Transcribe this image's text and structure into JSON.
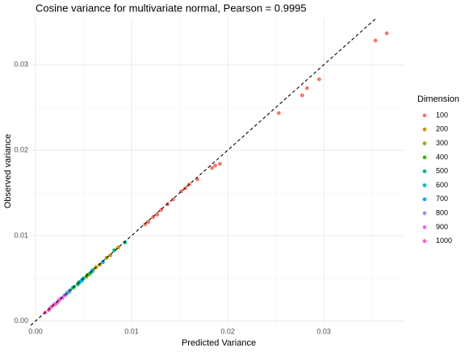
{
  "chart_data": {
    "type": "scatter",
    "title": "Cosine variance for multivariate normal, Pearson = 0.9995",
    "x_label": "Predicted Variance",
    "y_label": "Observed variance",
    "legend_title": "Dimension",
    "xlim": [
      -0.0005,
      0.0383
    ],
    "ylim": [
      -0.0005,
      0.0355
    ],
    "xticks": [
      {
        "value": 0,
        "label": "0.00"
      },
      {
        "value": 0.01,
        "label": "0.01"
      },
      {
        "value": 0.02,
        "label": "0.02"
      },
      {
        "value": 0.03,
        "label": "0.03"
      }
    ],
    "yticks": [
      {
        "value": 0,
        "label": "0.00"
      },
      {
        "value": 0.01,
        "label": "0.01"
      },
      {
        "value": 0.02,
        "label": "0.02"
      },
      {
        "value": 0.03,
        "label": "0.03"
      }
    ],
    "x_minor_grid": [
      0.005,
      0.015,
      0.025,
      0.035
    ],
    "y_minor_grid": [
      0.005,
      0.015,
      0.025
    ],
    "grid": true,
    "identity_line": true,
    "legend": "right",
    "series": [
      {
        "name": "100",
        "color": "#F8766D",
        "x": [
          0.03537,
          0.03655,
          0.02951,
          0.02825,
          0.02775,
          0.02531,
          0.0192,
          0.0187,
          0.01836,
          0.01685,
          0.016,
          0.0156,
          0.01517,
          0.01433,
          0.01375,
          0.01308,
          0.01266,
          0.01224,
          0.01174,
          0.0114
        ],
        "values": [
          0.03283,
          0.03368,
          0.0283,
          0.02726,
          0.02642,
          0.02434,
          0.0184,
          0.0182,
          0.01792,
          0.0166,
          0.016,
          0.01557,
          0.01519,
          0.01425,
          0.01368,
          0.01302,
          0.01245,
          0.01217,
          0.0116,
          0.01132
        ]
      },
      {
        "name": "200",
        "color": "#D89000",
        "x": [
          0.0056,
          0.0063,
          0.007,
          0.0078,
          0.0086
        ],
        "values": [
          0.0055,
          0.0063,
          0.0069,
          0.0077,
          0.0086
        ]
      },
      {
        "name": "300",
        "color": "#A3A500",
        "x": [
          0.0046,
          0.0053,
          0.006,
          0.0067,
          0.0074
        ],
        "values": [
          0.0046,
          0.0052,
          0.006,
          0.0066,
          0.0074
        ]
      },
      {
        "name": "400",
        "color": "#39B600",
        "x": [
          0.0039,
          0.0044,
          0.0049,
          0.0054,
          0.0059
        ],
        "values": [
          0.0039,
          0.0043,
          0.0049,
          0.0054,
          0.0058
        ]
      },
      {
        "name": "500",
        "color": "#00BF7D",
        "x": [
          0.0033,
          0.0045,
          0.0057,
          0.0082,
          0.0093
        ],
        "values": [
          0.0033,
          0.0045,
          0.0056,
          0.0083,
          0.0092
        ]
      },
      {
        "name": "600",
        "color": "#00BFC4",
        "x": [
          0.003,
          0.0035,
          0.004,
          0.0045,
          0.005
        ],
        "values": [
          0.003,
          0.0034,
          0.004,
          0.0044,
          0.005
        ]
      },
      {
        "name": "700",
        "color": "#00B0F6",
        "x": [
          0.0025,
          0.0036,
          0.0048,
          0.0059,
          0.007
        ],
        "values": [
          0.0025,
          0.0036,
          0.0047,
          0.0059,
          0.0069
        ]
      },
      {
        "name": "800",
        "color": "#9590FF",
        "x": [
          0.002,
          0.0024,
          0.0028,
          0.0032,
          0.0035
        ],
        "values": [
          0.002,
          0.0024,
          0.0027,
          0.0031,
          0.0035
        ]
      },
      {
        "name": "900",
        "color": "#E76BF3",
        "x": [
          0.0015,
          0.0019,
          0.0023,
          0.0027,
          0.003
        ],
        "values": [
          0.0015,
          0.0019,
          0.0022,
          0.0027,
          0.003
        ]
      },
      {
        "name": "1000",
        "color": "#FF62BC",
        "x": [
          0.001,
          0.0014,
          0.0017,
          0.0021,
          0.0025
        ],
        "values": [
          0.001,
          0.0013,
          0.0017,
          0.002,
          0.0025
        ]
      }
    ]
  }
}
